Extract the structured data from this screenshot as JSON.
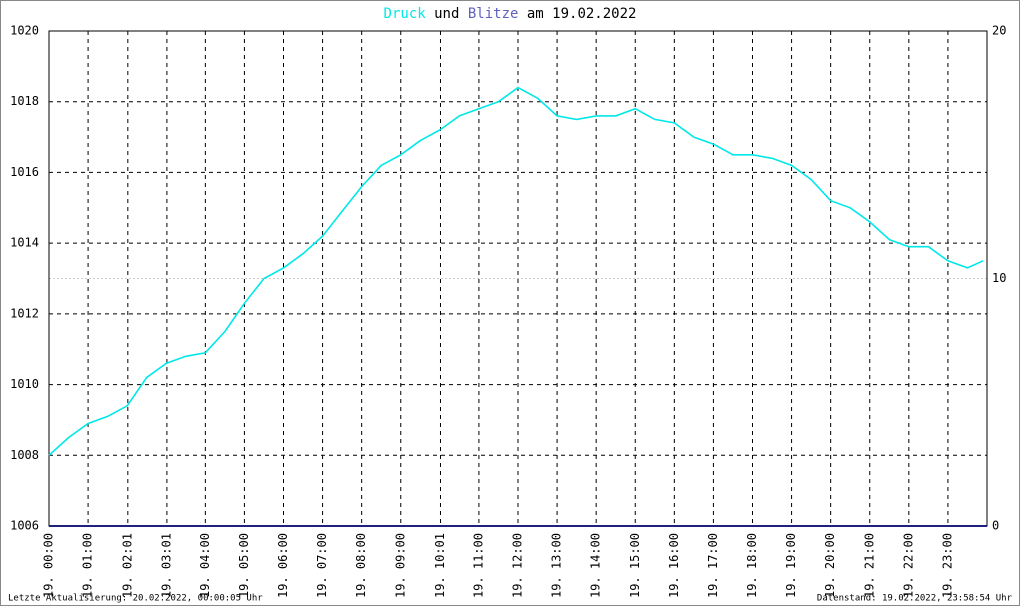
{
  "chart_data": {
    "type": "line",
    "title_joiner": "und",
    "title_suffix": "am 19.02.2022",
    "footer_left": "Letzte Aktualisierung: 20.02.2022, 00:00:05 Uhr",
    "footer_right": "Datenstand: 19.02.2022, 23:58:54 Uhr",
    "series": [
      {
        "name": "Druck",
        "color": "#00e8e8",
        "x": [
          0,
          0.5,
          1,
          1.5,
          2,
          2.5,
          3,
          3.5,
          4,
          4.5,
          5,
          5.5,
          6,
          6.5,
          7,
          7.5,
          8,
          8.5,
          9,
          9.5,
          10,
          10.5,
          11,
          11.5,
          12,
          12.5,
          13,
          13.5,
          14,
          14.5,
          15,
          15.5,
          16,
          16.5,
          17,
          17.5,
          18,
          18.5,
          19,
          19.5,
          20,
          20.5,
          21,
          21.5,
          22,
          22.5,
          23,
          23.5,
          23.9
        ],
        "values": [
          1008.0,
          1008.5,
          1008.9,
          1009.1,
          1009.4,
          1010.2,
          1010.6,
          1010.8,
          1010.9,
          1011.5,
          1012.3,
          1013.0,
          1013.3,
          1013.7,
          1014.2,
          1014.9,
          1015.6,
          1016.2,
          1016.5,
          1016.9,
          1017.2,
          1017.6,
          1017.8,
          1018.0,
          1018.4,
          1018.1,
          1017.6,
          1017.5,
          1017.6,
          1017.6,
          1017.8,
          1017.5,
          1017.4,
          1017.0,
          1016.8,
          1016.5,
          1016.5,
          1016.4,
          1016.2,
          1015.8,
          1015.2,
          1015.0,
          1014.6,
          1014.1,
          1013.9,
          1013.9,
          1013.5,
          1013.3,
          1013.5
        ]
      },
      {
        "name": "Blitze",
        "color": "#202080",
        "axis": "y2",
        "x": [
          0,
          24
        ],
        "values": [
          0,
          0
        ]
      }
    ],
    "xlim": [
      0,
      24
    ],
    "xticks": [
      {
        "value": 0,
        "label": "19. 00:00"
      },
      {
        "value": 1,
        "label": "19. 01:00"
      },
      {
        "value": 2.0167,
        "label": "19. 02:01"
      },
      {
        "value": 3.0167,
        "label": "19. 03:01"
      },
      {
        "value": 4,
        "label": "19. 04:00"
      },
      {
        "value": 5,
        "label": "19. 05:00"
      },
      {
        "value": 6,
        "label": "19. 06:00"
      },
      {
        "value": 7,
        "label": "19. 07:00"
      },
      {
        "value": 8,
        "label": "19. 08:00"
      },
      {
        "value": 9,
        "label": "19. 09:00"
      },
      {
        "value": 10.0167,
        "label": "19. 10:01"
      },
      {
        "value": 11,
        "label": "19. 11:00"
      },
      {
        "value": 12,
        "label": "19. 12:00"
      },
      {
        "value": 13,
        "label": "19. 13:00"
      },
      {
        "value": 14,
        "label": "19. 14:00"
      },
      {
        "value": 15,
        "label": "19. 15:00"
      },
      {
        "value": 16,
        "label": "19. 16:00"
      },
      {
        "value": 17,
        "label": "19. 17:00"
      },
      {
        "value": 18,
        "label": "19. 18:00"
      },
      {
        "value": 19,
        "label": "19. 19:00"
      },
      {
        "value": 20,
        "label": "19. 20:00"
      },
      {
        "value": 21,
        "label": "19. 21:00"
      },
      {
        "value": 22,
        "label": "19. 22:00"
      },
      {
        "value": 23,
        "label": "19. 23:00"
      }
    ],
    "ylim": [
      1006,
      1020
    ],
    "yticks": [
      1006,
      1008,
      1010,
      1012,
      1014,
      1016,
      1018,
      1020
    ],
    "y2lim": [
      0,
      20
    ],
    "y2ticks": [
      0,
      10,
      20
    ],
    "grid": true
  }
}
